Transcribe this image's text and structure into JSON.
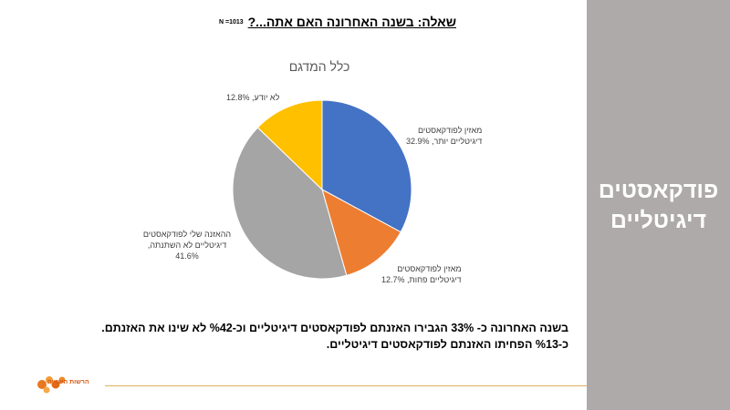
{
  "slide": {
    "question": "שאלה: בשנה האחרונה האם אתה...?",
    "n_label": "N =1013",
    "panel_title_line1": "פודקאסטים",
    "panel_title_line2": "דיגיטליים",
    "summary_line1": "בשנה האחרונה כ- 33% הגבירו האזנתם לפודקאסטים דיגיטליים וכ-%42 לא שינו את האזנתם.",
    "summary_line2": "כ-%13 הפחיתו האזנתם לפודקאסטים דיגיטליים.",
    "logo_text": "הרשות השנייה"
  },
  "chart_data": {
    "type": "pie",
    "title": "כלל המדגם",
    "slices": [
      {
        "label_line1": "מאזין לפודקאסטים",
        "label_line2": "דיגיטליים יותר, 32.9%",
        "value": 32.9,
        "color": "#4472c4"
      },
      {
        "label_line1": "מאזין לפודקאסטים",
        "label_line2": "דיגיטליים פחות, 12.7%",
        "value": 12.7,
        "color": "#ed7d31"
      },
      {
        "label_line1": "ההאזנה שלי לפודקאסטים",
        "label_line2": "דיגיטליים לא השתנתה,",
        "label_line3": "41.6%",
        "value": 41.6,
        "color": "#a5a5a5"
      },
      {
        "label_line1": "לא יודע, 12.8%",
        "value": 12.8,
        "color": "#ffc000"
      }
    ]
  }
}
